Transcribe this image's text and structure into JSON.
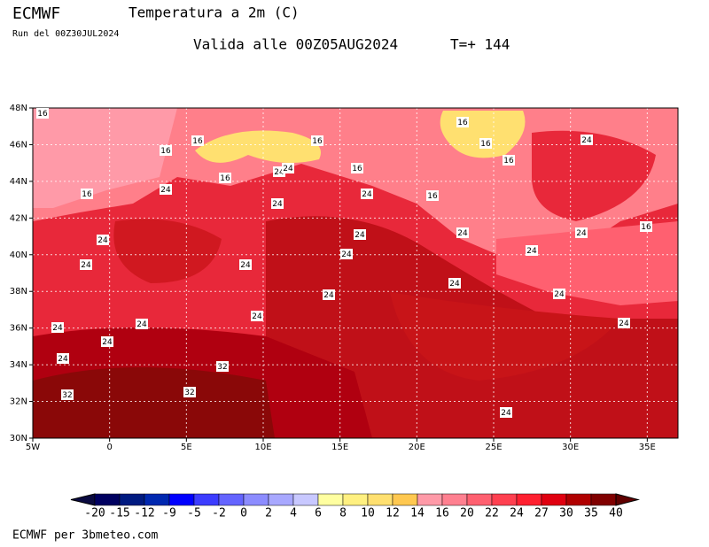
{
  "header": {
    "model": "ECMWF",
    "title": "Temperatura a 2m (C)",
    "run": "Run del 00Z30JUL2024",
    "valid": "Valida alle 00Z05AUG2024",
    "step": "T=+ 144"
  },
  "map": {
    "lat_labels": [
      "48N",
      "46N",
      "44N",
      "42N",
      "40N",
      "38N",
      "36N",
      "34N",
      "32N",
      "30N"
    ],
    "lon_labels": [
      "5W",
      "0",
      "5E",
      "10E",
      "15E",
      "20E",
      "25E",
      "30E",
      "35E"
    ],
    "contour_labels": [
      16,
      16,
      16,
      16,
      16,
      16,
      16,
      16,
      16,
      16,
      16,
      16,
      24,
      24,
      24,
      24,
      24,
      24,
      24,
      24,
      24,
      24,
      24,
      24,
      24,
      24,
      24,
      24,
      24,
      24,
      24,
      24,
      24,
      24,
      24,
      24,
      32,
      32,
      32
    ]
  },
  "colorbar": {
    "ticks": [
      -20,
      -15,
      -12,
      -9,
      -5,
      -2,
      0,
      2,
      4,
      6,
      8,
      10,
      12,
      14,
      16,
      20,
      22,
      24,
      27,
      30,
      35,
      40
    ],
    "colors": [
      "#0a0a40",
      "#000060",
      "#001a80",
      "#0028b0",
      "#0000ff",
      "#3c3cff",
      "#6464ff",
      "#8c8cff",
      "#a8a8ff",
      "#c8c8ff",
      "#ffffa0",
      "#fff080",
      "#ffe070",
      "#ffc850",
      "#ff9aa8",
      "#ff8090",
      "#ff6070",
      "#ff4050",
      "#ff2030",
      "#e00010",
      "#b00000",
      "#800000",
      "#600000"
    ]
  },
  "footer": "ECMWF per 3bmeteo.com"
}
